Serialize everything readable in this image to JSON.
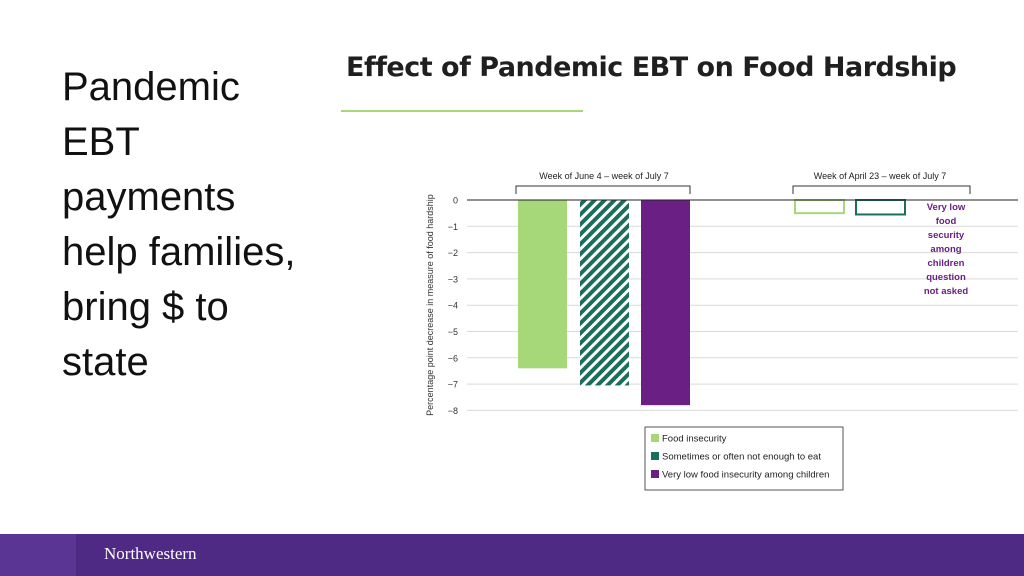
{
  "slide": {
    "title_lines": [
      "Pandemic",
      "EBT",
      "payments",
      "help families,",
      "bring $ to",
      "state"
    ]
  },
  "footer": {
    "logo_text": "Northwestern"
  },
  "colors": {
    "food_insecurity": "#a6d87a",
    "not_enough_to_eat": "#1c6e5c",
    "very_low": "#6a1f85",
    "note_text": "#6a1f85",
    "footer_bg": "#4e2a84"
  },
  "chart_data": {
    "type": "bar",
    "title": "Effect of Pandemic EBT on Food Hardship",
    "ylabel": "Percentage point decrease in measure of food hardship",
    "xlabel": "",
    "ylim": [
      -8,
      0
    ],
    "yticks": [
      0,
      -1,
      -2,
      -3,
      -4,
      -5,
      -6,
      -7,
      -8
    ],
    "ytick_labels": [
      "0",
      "−1",
      "−2",
      "−3",
      "−4",
      "−5",
      "−6",
      "−7",
      "−8"
    ],
    "grid": true,
    "categories": [
      "Week of June 4 – week of July 7",
      "Week of April 23 – week of July 7"
    ],
    "series": [
      {
        "name": "Food insecurity",
        "values": [
          -6.4,
          -0.5
        ]
      },
      {
        "name": "Sometimes or often not enough to eat",
        "values": [
          -7.05,
          -0.55
        ]
      },
      {
        "name": "Very low food insecurity among children",
        "values": [
          -7.8,
          null
        ]
      }
    ],
    "annotation": [
      "Very low",
      "food",
      "security",
      "among",
      "children",
      "question",
      "not asked"
    ],
    "legend_position": "bottom-center"
  }
}
